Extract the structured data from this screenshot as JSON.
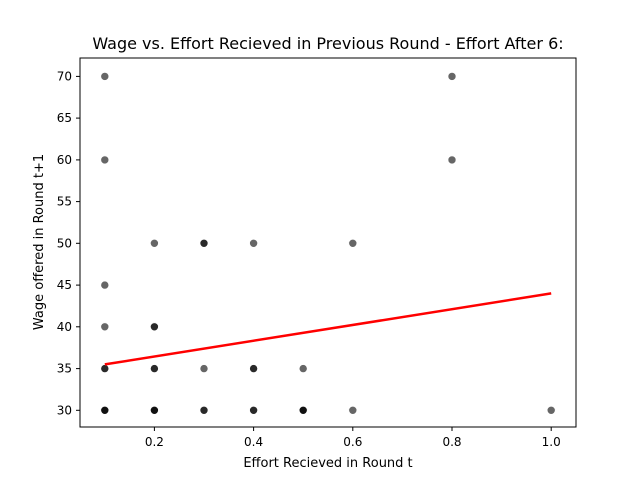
{
  "chart_data": {
    "type": "scatter",
    "title": "Wage vs. Effort Recieved in Previous Round - Effort After 6:",
    "xlabel": "Effort Recieved in Round t",
    "ylabel": "Wage offered in Round t+1",
    "xlim": [
      0.05,
      1.05
    ],
    "ylim": [
      28,
      72.2
    ],
    "xticks": [
      0.2,
      0.4,
      0.6,
      0.8,
      1.0
    ],
    "xtick_labels": [
      "0.2",
      "0.4",
      "0.6",
      "0.8",
      "1.0"
    ],
    "yticks": [
      30,
      35,
      40,
      45,
      50,
      55,
      60,
      65,
      70
    ],
    "ytick_labels": [
      "30",
      "35",
      "40",
      "45",
      "50",
      "55",
      "60",
      "65",
      "70"
    ],
    "grid": false,
    "legend": "none",
    "point_color": "#000000",
    "point_alpha": 0.6,
    "points": [
      {
        "x": 0.1,
        "y": 30,
        "count": 3
      },
      {
        "x": 0.1,
        "y": 35,
        "count": 2
      },
      {
        "x": 0.1,
        "y": 40,
        "count": 1
      },
      {
        "x": 0.1,
        "y": 45,
        "count": 1
      },
      {
        "x": 0.1,
        "y": 60,
        "count": 1
      },
      {
        "x": 0.1,
        "y": 70,
        "count": 1
      },
      {
        "x": 0.2,
        "y": 30,
        "count": 3
      },
      {
        "x": 0.2,
        "y": 35,
        "count": 2
      },
      {
        "x": 0.2,
        "y": 40,
        "count": 2
      },
      {
        "x": 0.2,
        "y": 50,
        "count": 1
      },
      {
        "x": 0.3,
        "y": 30,
        "count": 2
      },
      {
        "x": 0.3,
        "y": 35,
        "count": 1
      },
      {
        "x": 0.3,
        "y": 50,
        "count": 2
      },
      {
        "x": 0.4,
        "y": 30,
        "count": 2
      },
      {
        "x": 0.4,
        "y": 35,
        "count": 2
      },
      {
        "x": 0.4,
        "y": 50,
        "count": 1
      },
      {
        "x": 0.5,
        "y": 30,
        "count": 3
      },
      {
        "x": 0.5,
        "y": 35,
        "count": 1
      },
      {
        "x": 0.6,
        "y": 30,
        "count": 1
      },
      {
        "x": 0.6,
        "y": 50,
        "count": 1
      },
      {
        "x": 0.8,
        "y": 60,
        "count": 1
      },
      {
        "x": 0.8,
        "y": 70,
        "count": 1
      },
      {
        "x": 1.0,
        "y": 30,
        "count": 1
      }
    ],
    "trend_line": {
      "color": "#ff0000",
      "points": [
        [
          0.1,
          35.5
        ],
        [
          1.0,
          44.0
        ]
      ]
    }
  }
}
